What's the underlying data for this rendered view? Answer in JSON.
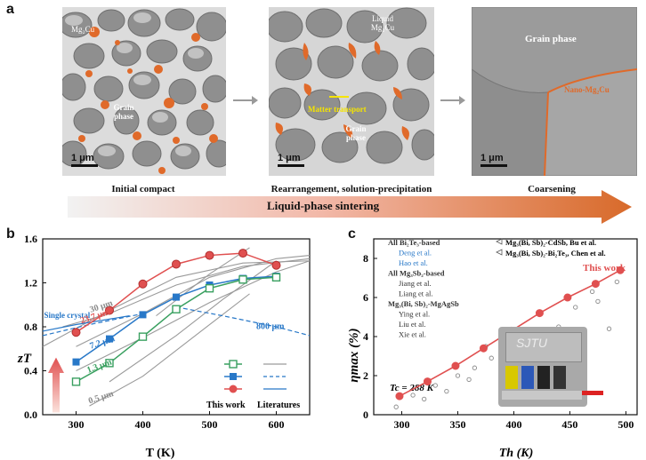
{
  "panel_a": {
    "letter": "a",
    "images": [
      {
        "caption": "Initial compact",
        "scale_label": "1 μm",
        "labels": [
          "Mg₂Cu",
          "Grain phase"
        ]
      },
      {
        "caption": "Rearrangement, solution-precipitation",
        "scale_label": "1 μm",
        "labels": [
          "Liquid Mg₂Cu",
          "Matter transport",
          "Grain phase"
        ]
      },
      {
        "caption": "Coarsening",
        "scale_label": "1 μm",
        "labels": [
          "Grain phase",
          "Nano-Mg₂Cu"
        ]
      }
    ],
    "banner": "Liquid-phase sintering"
  },
  "panel_b": {
    "letter": "b",
    "ylabel": "zT",
    "xlabel": "T (K)",
    "annotations": [
      "Single crystal",
      "30 μm",
      "23.7 μm",
      "7.2 μm",
      "1.3 μm",
      "0.5 μm",
      "800 μm"
    ],
    "legend": {
      "this_work": "This work",
      "literatures": "Literatures"
    },
    "xticks": [
      "300",
      "400",
      "500",
      "600"
    ],
    "yticks": [
      "0.0",
      "0.4",
      "0.8",
      "1.2",
      "1.6"
    ]
  },
  "panel_c": {
    "letter": "c",
    "ylabel": "ηmax (%)",
    "xlabel": "Th (K)",
    "tc_label": "Tc = 288 K",
    "this_work": "This work",
    "device_label": "SJTU",
    "legend_col1": [
      "All Bi₂Te₃-based",
      "Deng et al.",
      "Hao et al.",
      "All Mg₃Sb₂-based",
      "Jiang et al.",
      "Liang et al.",
      "Mg₃(Bi, Sb)₂-MgAgSb",
      "Ying et al.",
      "Liu et al.",
      "Xie et al."
    ],
    "legend_col2": [
      "Mg₃(Bi, Sb)₂-CdSb, Bu et al.",
      "Mg₃(Bi, Sb)₂-Bi₂Te₃, Chen et al."
    ],
    "xticks": [
      "300",
      "350",
      "400",
      "450",
      "500"
    ],
    "yticks": [
      "0",
      "2",
      "4",
      "6",
      "8"
    ]
  },
  "chart_data": [
    {
      "type": "line",
      "title": "",
      "xlabel": "T (K)",
      "ylabel": "zT",
      "xlim": [
        250,
        650
      ],
      "ylim": [
        0,
        1.6
      ],
      "series": [
        {
          "name": "This work",
          "x": [
            300,
            350,
            400,
            450,
            500,
            550,
            600
          ],
          "y": [
            0.75,
            0.95,
            1.19,
            1.37,
            1.45,
            1.47,
            1.36
          ],
          "color": "#e05050"
        },
        {
          "x": [
            300,
            350,
            400,
            450,
            500,
            550,
            600
          ],
          "y": [
            0.48,
            0.69,
            0.91,
            1.07,
            1.18,
            1.24,
            1.26
          ],
          "color": "#2878c8"
        },
        {
          "x": [
            300,
            350,
            400,
            450,
            500,
            550,
            600
          ],
          "y": [
            0.3,
            0.47,
            0.71,
            0.96,
            1.15,
            1.23,
            1.25
          ],
          "color": "#3aa060"
        }
      ]
    },
    {
      "type": "scatter",
      "title": "",
      "xlabel": "Th (K)",
      "ylabel": "ηmax (%)",
      "xlim": [
        275,
        510
      ],
      "ylim": [
        0,
        9
      ],
      "series": [
        {
          "name": "This work",
          "x": [
            298,
            323,
            348,
            373,
            398,
            423,
            448,
            473,
            495
          ],
          "y": [
            0.95,
            1.7,
            2.5,
            3.4,
            4.3,
            5.2,
            6.0,
            6.7,
            7.4
          ],
          "color": "#e05050"
        }
      ]
    }
  ]
}
